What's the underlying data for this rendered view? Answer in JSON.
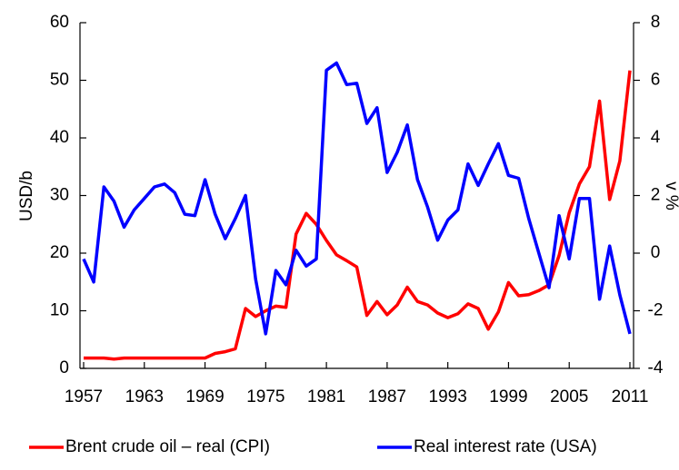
{
  "chart_data": {
    "type": "line",
    "categories": [
      "1957",
      null,
      null,
      null,
      null,
      null,
      "1963",
      null,
      null,
      null,
      null,
      null,
      "1969",
      null,
      null,
      null,
      null,
      null,
      "1975",
      null,
      null,
      null,
      null,
      null,
      "1981",
      null,
      null,
      null,
      null,
      null,
      "1987",
      null,
      null,
      null,
      null,
      null,
      "1993",
      null,
      null,
      null,
      null,
      null,
      "1999",
      null,
      null,
      null,
      null,
      null,
      "2005",
      null,
      null,
      null,
      null,
      null,
      "2011"
    ],
    "series": [
      {
        "name": "Brent crude oil – real (CPI)",
        "color": "#ff0000",
        "axis": "y",
        "values": [
          1.8,
          1.8,
          1.8,
          1.6,
          1.8,
          1.8,
          1.8,
          1.8,
          1.8,
          1.8,
          1.8,
          1.8,
          1.8,
          2.6,
          2.9,
          3.4,
          10.4,
          9,
          10,
          10.8,
          10.6,
          23.3,
          26.9,
          25,
          22.2,
          19.7,
          18.7,
          17.6,
          9.2,
          11.6,
          9.3,
          11,
          14.1,
          11.6,
          11,
          9.6,
          8.8,
          9.5,
          11.2,
          10.4,
          6.8,
          9.8,
          14.9,
          12.6,
          12.8,
          13.5,
          14.5,
          19.6,
          27,
          32,
          35,
          46.4,
          29.3,
          36,
          51.7
        ]
      },
      {
        "name": "Real interest rate (USA)",
        "color": "#0000ff",
        "axis": "y2",
        "values": [
          -0.2,
          -1.0,
          2.3,
          1.8,
          0.9,
          1.5,
          1.9,
          2.3,
          2.4,
          2.1,
          1.35,
          1.3,
          2.55,
          1.35,
          0.5,
          1.2,
          2.0,
          -0.9,
          -2.8,
          -0.6,
          -1.1,
          0.1,
          -0.45,
          -0.2,
          6.35,
          6.6,
          5.85,
          5.9,
          4.5,
          5.05,
          2.8,
          3.5,
          4.45,
          2.55,
          1.6,
          0.45,
          1.15,
          1.5,
          3.1,
          2.35,
          3.1,
          3.8,
          2.7,
          2.6,
          1.2,
          0,
          -1.2,
          1.3,
          -0.2,
          1.9,
          1.9,
          -1.6,
          0.25,
          -1.45,
          -2.8
        ]
      }
    ],
    "y_label": "USD/b",
    "y2_label": "v %",
    "ylim": [
      0,
      60
    ],
    "yticks": [
      0,
      10,
      20,
      30,
      40,
      50,
      60
    ],
    "y2lim": [
      -4,
      8
    ],
    "y2ticks": [
      -4,
      -2,
      0,
      2,
      4,
      6,
      8
    ],
    "legend": "bottom"
  }
}
